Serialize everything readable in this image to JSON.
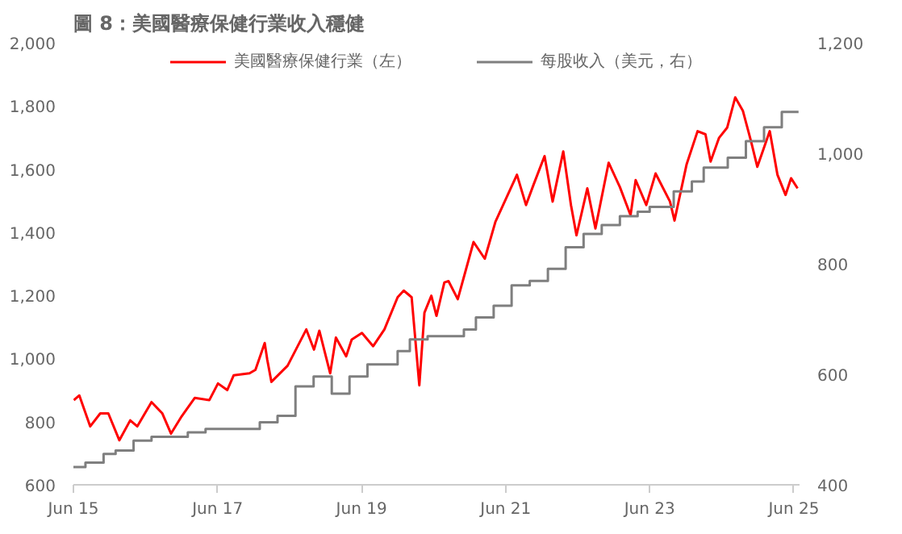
{
  "chart_data": {
    "type": "line",
    "title": "圖 8：美國醫療保健行業收入穩健",
    "xlim": [
      "2015-06-01",
      "2025-06-30"
    ],
    "xticks": [
      {
        "value": "2015-06-01",
        "label": "Jun 15"
      },
      {
        "value": "2017-06-01",
        "label": "Jun 17"
      },
      {
        "value": "2019-06-01",
        "label": "Jun 19"
      },
      {
        "value": "2021-06-01",
        "label": "Jun 21"
      },
      {
        "value": "2023-06-01",
        "label": "Jun 23"
      },
      {
        "value": "2025-06-01",
        "label": "Jun 25"
      }
    ],
    "ylim": [
      600,
      2000
    ],
    "yticks": [
      600,
      800,
      {
        "value": 1000,
        "label": "1,000"
      },
      {
        "value": 1200,
        "label": "1,200"
      },
      {
        "value": 1400,
        "label": "1,400"
      },
      {
        "value": 1600,
        "label": "1,600"
      },
      {
        "value": 1800,
        "label": "1,800"
      },
      {
        "value": 2000,
        "label": "2,000"
      }
    ],
    "y2lim": [
      400,
      1200
    ],
    "y2ticks": [
      400,
      600,
      800,
      {
        "value": 1000,
        "label": "1,000"
      },
      {
        "value": 1200,
        "label": "1,200"
      }
    ],
    "legend": "top",
    "grid": false,
    "line_style": "solid",
    "series": [
      {
        "name": "美國醫療保健行業（左）",
        "color": "#ff0000",
        "x": [
          "2015-06-03",
          "2015-07-01",
          "2015-08-25",
          "2015-10-15",
          "2015-11-25",
          "2016-01-20",
          "2016-03-15",
          "2016-04-20",
          "2016-07-01",
          "2016-08-25",
          "2016-10-08",
          "2016-12-01",
          "2017-02-05",
          "2017-04-20",
          "2017-06-03",
          "2017-07-20",
          "2017-08-22",
          "2017-11-10",
          "2017-12-10",
          "2018-01-26",
          "2018-02-08",
          "2018-03-01",
          "2018-05-22",
          "2018-08-25",
          "2018-10-03",
          "2018-10-30",
          "2018-12-24",
          "2019-01-22",
          "2019-03-15",
          "2019-04-12",
          "2019-06-03",
          "2019-07-30",
          "2019-09-25",
          "2019-12-01",
          "2020-01-01",
          "2020-02-10",
          "2020-03-20",
          "2020-04-15",
          "2020-05-20",
          "2020-06-15",
          "2020-07-25",
          "2020-08-15",
          "2020-10-01",
          "2020-12-20",
          "2021-02-15",
          "2021-04-10",
          "2021-07-28",
          "2021-09-12",
          "2021-10-20",
          "2021-12-15",
          "2022-01-25",
          "2022-03-20",
          "2022-04-28",
          "2022-05-26",
          "2022-07-20",
          "2022-08-30",
          "2022-11-05",
          "2023-01-01",
          "2023-02-24",
          "2023-03-22",
          "2023-05-15",
          "2023-07-01",
          "2023-09-12",
          "2023-10-05",
          "2023-12-05",
          "2024-01-30",
          "2024-03-10",
          "2024-04-05",
          "2024-05-18",
          "2024-06-28",
          "2024-08-08",
          "2024-09-16",
          "2024-10-27",
          "2024-11-28",
          "2025-01-30",
          "2025-03-10",
          "2025-04-20",
          "2025-05-18",
          "2025-06-20"
        ],
        "values": [
          868,
          883,
          785,
          826,
          826,
          741,
          804,
          785,
          862,
          826,
          762,
          817,
          875,
          868,
          921,
          900,
          947,
          953,
          964,
          1049,
          996,
          926,
          977,
          1092,
          1028,
          1088,
          953,
          1066,
          1007,
          1060,
          1081,
          1039,
          1092,
          1194,
          1215,
          1194,
          915,
          1145,
          1199,
          1135,
          1241,
          1245,
          1188,
          1369,
          1316,
          1433,
          1582,
          1486,
          1550,
          1641,
          1497,
          1656,
          1486,
          1390,
          1539,
          1412,
          1620,
          1543,
          1454,
          1565,
          1486,
          1586,
          1497,
          1437,
          1614,
          1720,
          1710,
          1624,
          1699,
          1731,
          1827,
          1784,
          1688,
          1607,
          1720,
          1582,
          1518,
          1571,
          1539
        ]
      },
      {
        "name": "每股收入（美元，右）",
        "color": "#7f7f7f",
        "type": "step",
        "axis": "y2",
        "x": [
          "2015-06-01",
          "2015-08-01",
          "2015-11-01",
          "2016-01-01",
          "2016-04-01",
          "2016-07-01",
          "2017-01-01",
          "2017-04-01",
          "2018-01-01",
          "2018-04-01",
          "2018-07-01",
          "2018-10-01",
          "2019-01-01",
          "2019-04-01",
          "2019-07-01",
          "2019-12-01",
          "2020-02-01",
          "2020-05-01",
          "2020-11-01",
          "2021-01-01",
          "2021-04-01",
          "2021-07-01",
          "2021-10-01",
          "2022-01-01",
          "2022-04-01",
          "2022-07-01",
          "2022-10-01",
          "2023-01-01",
          "2023-04-01",
          "2023-06-01",
          "2023-10-01",
          "2024-01-01",
          "2024-03-01",
          "2024-07-01",
          "2024-10-01",
          "2025-01-01",
          "2025-04-01",
          "2025-06-25"
        ],
        "values": [
          432,
          440,
          456,
          462,
          480,
          487,
          495,
          501,
          513,
          525,
          578,
          596,
          565,
          596,
          618,
          642,
          663,
          669,
          681,
          703,
          724,
          761,
          769,
          791,
          830,
          854,
          870,
          886,
          894,
          903,
          931,
          949,
          974,
          992,
          1022,
          1047,
          1075,
          1075
        ]
      }
    ]
  }
}
